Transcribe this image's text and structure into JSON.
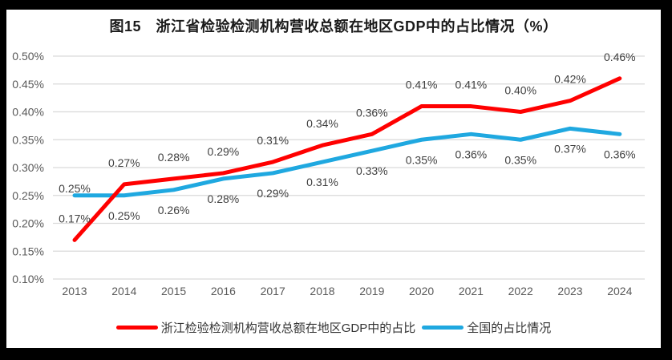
{
  "title": "图15　浙江省检验检测机构营收总额在地区GDP中的占比情况（%）",
  "colors": {
    "zhejiang_line": "#FF0000",
    "national_line": "#1FA8E0",
    "gridline": "#D9D9D9",
    "axis_text": "#595959",
    "data_label_text": "#3F3F3F",
    "frame": "#000000",
    "background": "#FFFFFF"
  },
  "chart_data": {
    "type": "line",
    "title": "图15　浙江省检验检测机构营收总额在地区GDP中的占比情况（%）",
    "x": [
      "2013",
      "2014",
      "2015",
      "2016",
      "2017",
      "2018",
      "2019",
      "2020",
      "2021",
      "2022",
      "2023",
      "2024"
    ],
    "series": [
      {
        "name": "浙江检验检测机构营收总额在地区GDP中的占比",
        "color": "#FF0000",
        "label_position": "above",
        "values": [
          0.17,
          0.27,
          0.28,
          0.29,
          0.31,
          0.34,
          0.36,
          0.41,
          0.41,
          0.4,
          0.42,
          0.46
        ],
        "labels": [
          "0.17%",
          "0.27%",
          "0.28%",
          "0.29%",
          "0.31%",
          "0.34%",
          "0.36%",
          "0.41%",
          "0.41%",
          "0.40%",
          "0.42%",
          "0.46%"
        ]
      },
      {
        "name": "全国的占比情况",
        "color": "#1FA8E0",
        "label_position": "below",
        "values": [
          0.25,
          0.25,
          0.26,
          0.28,
          0.29,
          0.31,
          0.33,
          0.35,
          0.36,
          0.35,
          0.37,
          0.36
        ],
        "labels": [
          "0.25%",
          "0.25%",
          "0.26%",
          "0.28%",
          "0.29%",
          "0.31%",
          "0.33%",
          "0.35%",
          "0.36%",
          "0.35%",
          "0.37%",
          "0.36%"
        ]
      }
    ],
    "xlabel": "",
    "ylabel": "",
    "ylim": [
      0.1,
      0.5
    ],
    "ytick_step": 0.05,
    "yticks": [
      "0.50%",
      "0.45%",
      "0.40%",
      "0.35%",
      "0.30%",
      "0.25%",
      "0.20%",
      "0.15%",
      "0.10%"
    ],
    "grid": true,
    "legend_position": "bottom"
  }
}
